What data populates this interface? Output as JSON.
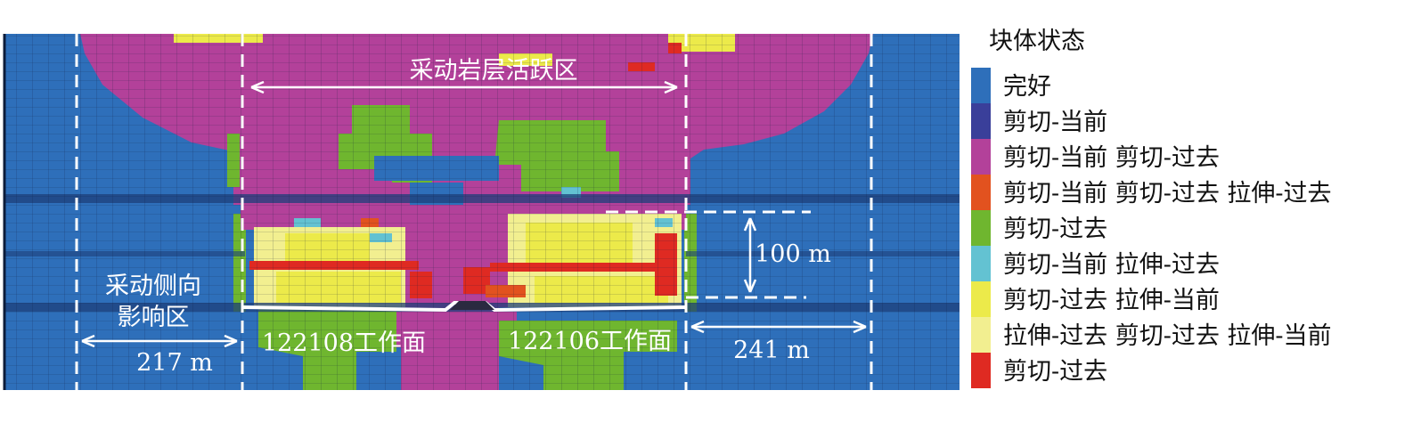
{
  "legend": {
    "title": "块体状态",
    "items": [
      {
        "label": "完好",
        "color": "#2e6fba"
      },
      {
        "label": "剪切-当前",
        "color": "#3a3f9a"
      },
      {
        "label": "剪切-当前 剪切-过去",
        "color": "#b3419a"
      },
      {
        "label": "剪切-当前 剪切-过去 拉伸-过去",
        "color": "#e2521f"
      },
      {
        "label": "剪切-过去",
        "color": "#6fb62f"
      },
      {
        "label": "剪切-当前 拉伸-过去",
        "color": "#63c2d2"
      },
      {
        "label": "剪切-过去 拉伸-当前",
        "color": "#ecea4a"
      },
      {
        "label": "拉伸-过去 剪切-过去 拉伸-当前",
        "color": "#f2ef90"
      },
      {
        "label": "剪切-过去",
        "color": "#df2a22"
      }
    ]
  },
  "annotations": {
    "active_zone": "采动岩层活跃区",
    "side_zone_line1": "采动侧向",
    "side_zone_line2": "影响区",
    "dist_left": "217 m",
    "dist_right": "241 m",
    "height": "100 m",
    "face_left": "122108工作面",
    "face_right": "122106工作面"
  }
}
